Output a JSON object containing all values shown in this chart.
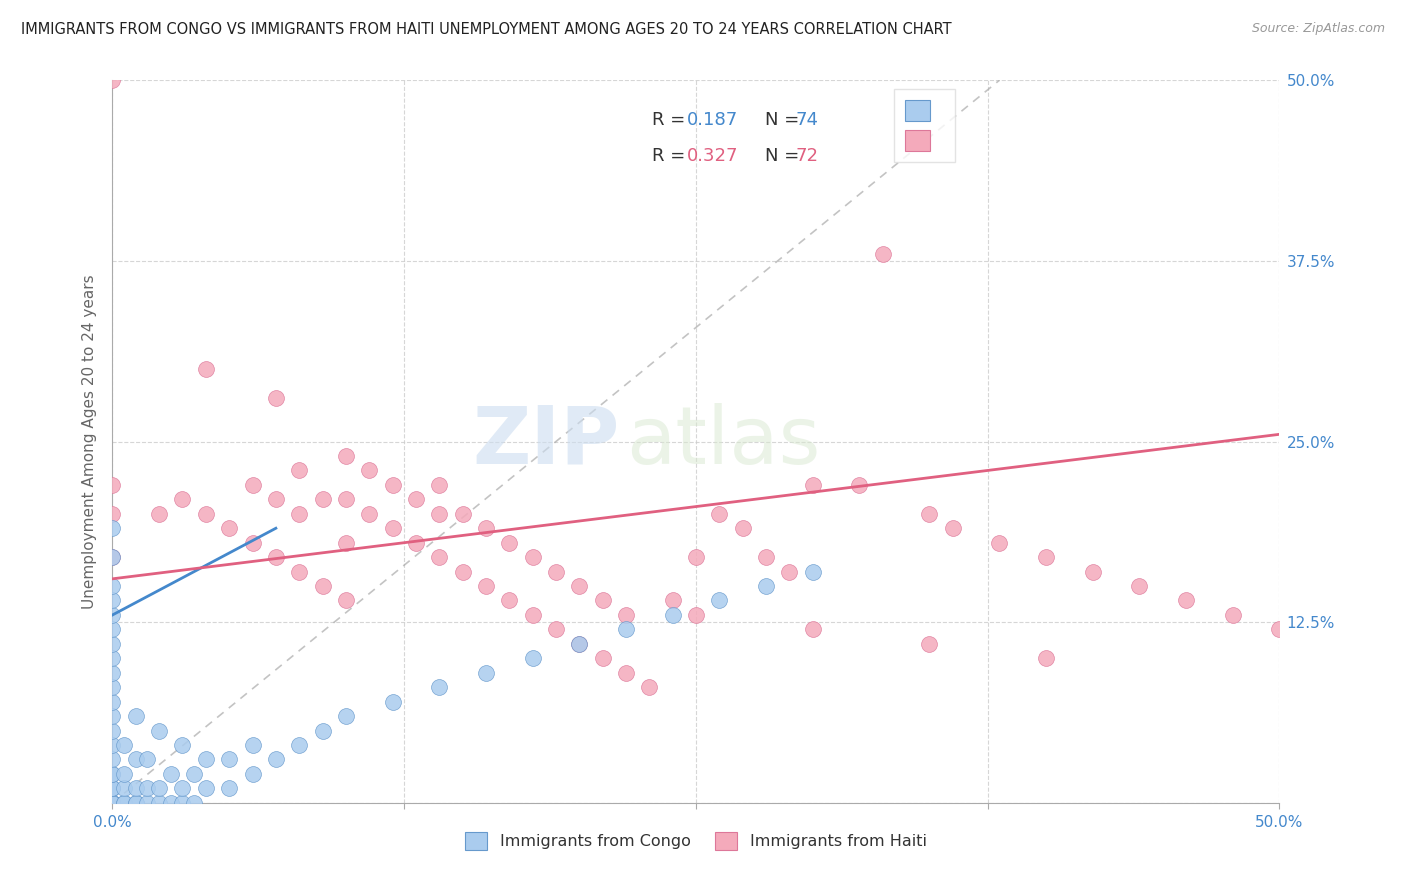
{
  "title": "IMMIGRANTS FROM CONGO VS IMMIGRANTS FROM HAITI UNEMPLOYMENT AMONG AGES 20 TO 24 YEARS CORRELATION CHART",
  "source": "Source: ZipAtlas.com",
  "ylabel": "Unemployment Among Ages 20 to 24 years",
  "xlim": [
    0.0,
    0.5
  ],
  "ylim": [
    0.0,
    0.5
  ],
  "grid_color": "#cccccc",
  "background_color": "#ffffff",
  "congo_color": "#aaccee",
  "haiti_color": "#f4aabb",
  "congo_line_color": "#4488cc",
  "haiti_line_color": "#e06080",
  "congo_R": 0.187,
  "congo_N": 74,
  "haiti_R": 0.327,
  "haiti_N": 72,
  "legend_label_congo": "Immigrants from Congo",
  "legend_label_haiti": "Immigrants from Haiti",
  "watermark_zip": "ZIP",
  "watermark_atlas": "atlas",
  "congo_x": [
    0.0,
    0.0,
    0.0,
    0.0,
    0.0,
    0.0,
    0.0,
    0.0,
    0.0,
    0.0,
    0.0,
    0.0,
    0.0,
    0.0,
    0.0,
    0.0,
    0.0,
    0.0,
    0.0,
    0.0,
    0.0,
    0.0,
    0.0,
    0.0,
    0.0,
    0.0,
    0.0,
    0.0,
    0.0,
    0.0,
    0.005,
    0.005,
    0.005,
    0.005,
    0.005,
    0.01,
    0.01,
    0.01,
    0.01,
    0.01,
    0.015,
    0.015,
    0.015,
    0.02,
    0.02,
    0.02,
    0.025,
    0.025,
    0.03,
    0.03,
    0.03,
    0.035,
    0.035,
    0.04,
    0.04,
    0.05,
    0.05,
    0.06,
    0.06,
    0.07,
    0.08,
    0.09,
    0.1,
    0.12,
    0.14,
    0.16,
    0.18,
    0.2,
    0.22,
    0.24,
    0.26,
    0.28,
    0.3
  ],
  "congo_y": [
    0.0,
    0.0,
    0.0,
    0.0,
    0.0,
    0.0,
    0.0,
    0.0,
    0.0,
    0.0,
    0.01,
    0.01,
    0.01,
    0.02,
    0.02,
    0.03,
    0.04,
    0.05,
    0.06,
    0.07,
    0.08,
    0.09,
    0.1,
    0.11,
    0.12,
    0.13,
    0.14,
    0.15,
    0.17,
    0.19,
    0.0,
    0.0,
    0.01,
    0.02,
    0.04,
    0.0,
    0.0,
    0.01,
    0.03,
    0.06,
    0.0,
    0.01,
    0.03,
    0.0,
    0.01,
    0.05,
    0.0,
    0.02,
    0.0,
    0.01,
    0.04,
    0.0,
    0.02,
    0.01,
    0.03,
    0.01,
    0.03,
    0.02,
    0.04,
    0.03,
    0.04,
    0.05,
    0.06,
    0.07,
    0.08,
    0.09,
    0.1,
    0.11,
    0.12,
    0.13,
    0.14,
    0.15,
    0.16
  ],
  "haiti_x": [
    0.0,
    0.0,
    0.0,
    0.0,
    0.02,
    0.03,
    0.04,
    0.04,
    0.05,
    0.06,
    0.06,
    0.07,
    0.07,
    0.07,
    0.08,
    0.08,
    0.08,
    0.09,
    0.09,
    0.1,
    0.1,
    0.1,
    0.1,
    0.11,
    0.11,
    0.12,
    0.12,
    0.13,
    0.13,
    0.14,
    0.14,
    0.14,
    0.15,
    0.15,
    0.16,
    0.16,
    0.17,
    0.17,
    0.18,
    0.18,
    0.19,
    0.19,
    0.2,
    0.2,
    0.21,
    0.21,
    0.22,
    0.22,
    0.23,
    0.24,
    0.25,
    0.26,
    0.27,
    0.28,
    0.29,
    0.3,
    0.32,
    0.33,
    0.35,
    0.36,
    0.38,
    0.4,
    0.42,
    0.44,
    0.46,
    0.48,
    0.5,
    0.25,
    0.3,
    0.35,
    0.4
  ],
  "haiti_y": [
    0.17,
    0.2,
    0.22,
    0.5,
    0.2,
    0.21,
    0.2,
    0.3,
    0.19,
    0.18,
    0.22,
    0.17,
    0.21,
    0.28,
    0.16,
    0.2,
    0.23,
    0.15,
    0.21,
    0.14,
    0.18,
    0.21,
    0.24,
    0.2,
    0.23,
    0.19,
    0.22,
    0.18,
    0.21,
    0.17,
    0.2,
    0.22,
    0.16,
    0.2,
    0.15,
    0.19,
    0.14,
    0.18,
    0.13,
    0.17,
    0.12,
    0.16,
    0.11,
    0.15,
    0.1,
    0.14,
    0.09,
    0.13,
    0.08,
    0.14,
    0.17,
    0.2,
    0.19,
    0.17,
    0.16,
    0.22,
    0.22,
    0.38,
    0.2,
    0.19,
    0.18,
    0.17,
    0.16,
    0.15,
    0.14,
    0.13,
    0.12,
    0.13,
    0.12,
    0.11,
    0.1
  ],
  "congo_line_x": [
    0.0,
    0.07
  ],
  "congo_line_y": [
    0.13,
    0.19
  ],
  "haiti_line_x": [
    0.0,
    0.5
  ],
  "haiti_line_y": [
    0.155,
    0.255
  ],
  "dashed_line_x": [
    0.0,
    0.38
  ],
  "dashed_line_y": [
    0.0,
    0.5
  ]
}
